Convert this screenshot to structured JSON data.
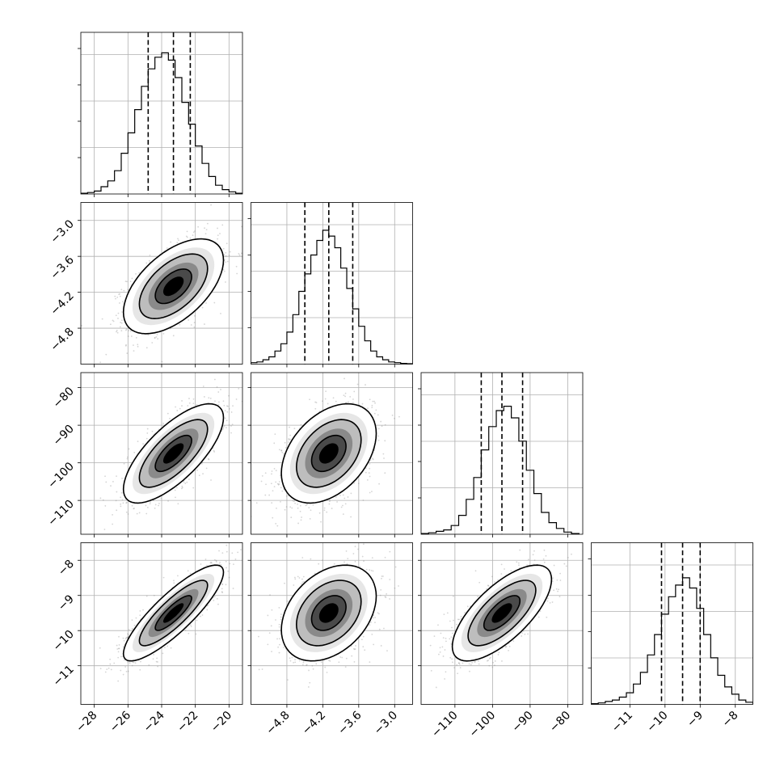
{
  "chart_data": {
    "type": "corner",
    "colors": {
      "line": "#000000",
      "grid": "#b0b0b0",
      "points": "#888888",
      "density_fill": [
        "#ffffff",
        "#e6e6e6",
        "#bdbdbd",
        "#8a8a8a",
        "#4a4a4a",
        "#000000"
      ]
    },
    "grid": true,
    "parameters": [
      {
        "index": 0,
        "range": [
          -28.8,
          -19.2
        ],
        "median": -23.3,
        "quantiles": [
          -24.8,
          -23.3,
          -22.3
        ],
        "ticks": [
          -28,
          -26,
          -24,
          -22,
          -20
        ],
        "tick_labels": [
          "−28",
          "−26",
          "−24",
          "−22",
          "−20"
        ],
        "hist_x": [
          -28.6,
          -28.2,
          -27.8,
          -27.4,
          -27.0,
          -26.6,
          -26.2,
          -25.8,
          -25.4,
          -25.0,
          -24.6,
          -24.2,
          -23.8,
          -23.4,
          -23.0,
          -22.6,
          -22.2,
          -21.8,
          -21.4,
          -21.0,
          -20.6,
          -20.2,
          -19.8,
          -19.4
        ],
        "hist_counts": [
          0.5,
          1,
          2,
          5,
          9,
          16,
          28,
          42,
          58,
          74,
          86,
          94,
          97,
          92,
          80,
          63,
          48,
          33,
          21,
          12,
          6,
          3,
          1.5,
          0.5
        ],
        "hist_ylim": [
          0,
          100
        ]
      },
      {
        "index": 1,
        "range": [
          -5.4,
          -2.7
        ],
        "median": -4.1,
        "quantiles": [
          -4.5,
          -4.1,
          -3.7
        ],
        "ticks": [
          -4.8,
          -4.2,
          -3.6,
          -3.0
        ],
        "tick_labels": [
          "−4.8",
          "−4.2",
          "−3.6",
          "−3.0"
        ],
        "hist_x": [
          -5.35,
          -5.25,
          -5.15,
          -5.05,
          -4.95,
          -4.85,
          -4.75,
          -4.65,
          -4.55,
          -4.45,
          -4.35,
          -4.25,
          -4.15,
          -4.05,
          -3.95,
          -3.85,
          -3.75,
          -3.65,
          -3.55,
          -3.45,
          -3.35,
          -3.25,
          -3.15,
          -3.05,
          -2.95,
          -2.85,
          -2.75
        ],
        "hist_counts": [
          1,
          1.5,
          3,
          5,
          9,
          14,
          22,
          34,
          50,
          62,
          75,
          85,
          92,
          88,
          80,
          66,
          52,
          38,
          26,
          16,
          9,
          5,
          3,
          1.5,
          1,
          0.5,
          0.3
        ],
        "hist_ylim": [
          0,
          100
        ]
      },
      {
        "index": 2,
        "range": [
          -119,
          -76
        ],
        "median": -97.5,
        "quantiles": [
          -103,
          -97.5,
          -92
        ],
        "ticks": [
          -110,
          -100,
          -90,
          -80
        ],
        "tick_labels": [
          "−110",
          "−100",
          "−90",
          "−80"
        ],
        "hist_x": [
          -118,
          -116,
          -114,
          -112,
          -110,
          -108,
          -106,
          -104,
          -102,
          -100,
          -98,
          -96,
          -94,
          -92,
          -90,
          -88,
          -86,
          -84,
          -82,
          -80,
          -78
        ],
        "hist_counts": [
          0.5,
          1,
          2,
          3,
          6,
          13,
          24,
          39,
          58,
          74,
          85,
          88,
          80,
          64,
          44,
          28,
          15,
          8,
          4,
          1.5,
          0.5
        ],
        "hist_ylim": [
          0,
          100
        ]
      },
      {
        "index": 3,
        "range": [
          -12.1,
          -7.5
        ],
        "median": -9.5,
        "quantiles": [
          -10.1,
          -9.5,
          -9.0
        ],
        "ticks": [
          -11,
          -10,
          -9,
          -8
        ],
        "tick_labels": [
          "−11",
          "−10",
          "−9",
          "−8"
        ],
        "hist_x": [
          -12.0,
          -11.8,
          -11.6,
          -11.4,
          -11.2,
          -11.0,
          -10.8,
          -10.6,
          -10.4,
          -10.2,
          -10.0,
          -9.8,
          -9.6,
          -9.4,
          -9.2,
          -9.0,
          -8.8,
          -8.6,
          -8.4,
          -8.2,
          -8.0,
          -7.8,
          -7.6
        ],
        "hist_counts": [
          0.5,
          1,
          2,
          3,
          5,
          8,
          14,
          22,
          34,
          48,
          62,
          74,
          82,
          87,
          80,
          66,
          48,
          32,
          20,
          12,
          7,
          3,
          1.5
        ],
        "hist_ylim": [
          0,
          100
        ]
      }
    ],
    "correlations": [
      [
        1.0,
        0.55,
        0.72,
        0.85
      ],
      [
        0.55,
        1.0,
        0.4,
        0.35
      ],
      [
        0.72,
        0.4,
        1.0,
        0.7
      ],
      [
        0.85,
        0.35,
        0.7,
        1.0
      ]
    ],
    "stds": [
      1.35,
      0.36,
      6.0,
      0.62
    ],
    "contour_levels_sigma": [
      0.8,
      1.5,
      2.2
    ]
  }
}
